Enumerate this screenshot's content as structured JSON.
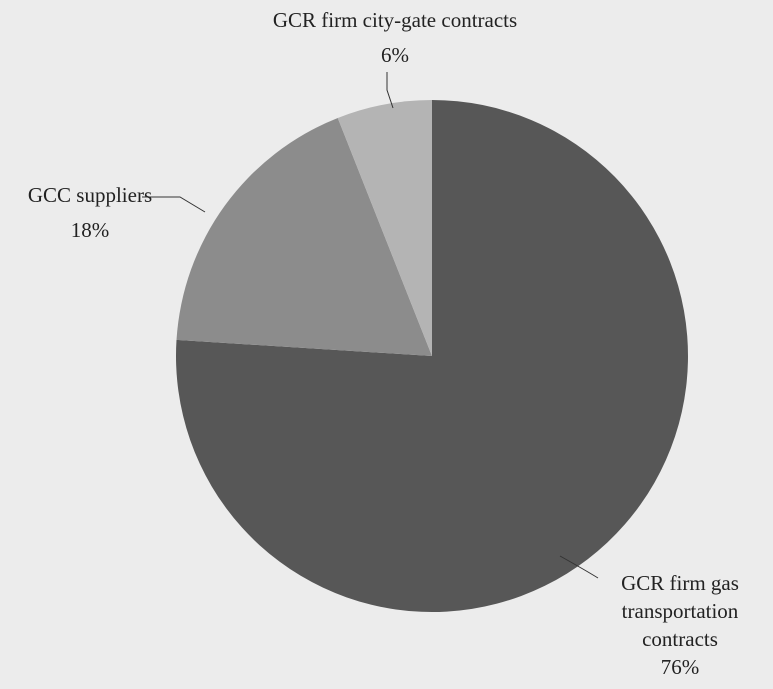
{
  "chart_data": {
    "type": "pie",
    "categories": [
      "GCR firm gas transportation contracts",
      "GCC suppliers",
      "GCR firm city-gate contracts"
    ],
    "values": [
      76,
      18,
      6
    ],
    "value_labels": [
      "76%",
      "18%",
      "6%"
    ],
    "colors": [
      "#575757",
      "#8c8c8c",
      "#b4b4b4"
    ],
    "start_angle": 0,
    "direction": "clockwise"
  }
}
